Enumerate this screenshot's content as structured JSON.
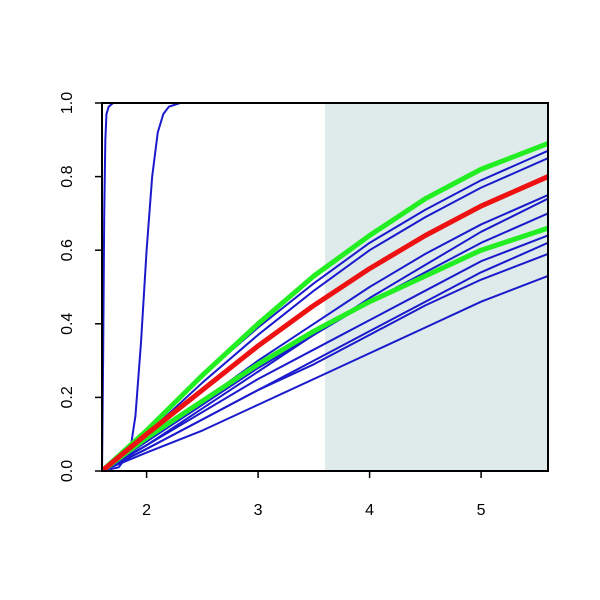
{
  "chart_data": {
    "type": "line",
    "xlim": [
      1.6,
      5.6
    ],
    "ylim": [
      0,
      1
    ],
    "xticks": [
      2,
      3,
      4,
      5
    ],
    "yticks": [
      {
        "value": 0,
        "label": "0.0"
      },
      {
        "value": 0.2,
        "label": "0.2"
      },
      {
        "value": 0.4,
        "label": "0.4"
      },
      {
        "value": 0.6,
        "label": "0.6"
      },
      {
        "value": 0.8,
        "label": "0.8"
      },
      {
        "value": 1,
        "label": "1.0"
      }
    ],
    "shaded_x": [
      3.6,
      5.6
    ],
    "shade_color": "#deebea",
    "series": [
      {
        "color": "#1a1acc",
        "linewidth": 2,
        "x": [
          1.6,
          1.61,
          1.62,
          1.63,
          1.64,
          1.66,
          1.7,
          1.8,
          5.6
        ],
        "values": [
          0,
          0.3,
          0.7,
          0.9,
          0.97,
          0.99,
          1,
          1,
          1
        ]
      },
      {
        "color": "#1a1acc",
        "linewidth": 2,
        "x": [
          1.6,
          1.75,
          1.85,
          1.9,
          1.95,
          2.0,
          2.05,
          2.1,
          2.15,
          2.2,
          2.3,
          5.6
        ],
        "values": [
          0,
          0.01,
          0.05,
          0.15,
          0.35,
          0.6,
          0.8,
          0.92,
          0.97,
          0.99,
          1,
          1
        ]
      },
      {
        "color": "#1a1acc",
        "linewidth": 2,
        "x": [
          1.6,
          2,
          2.5,
          3,
          3.5,
          4,
          4.5,
          5,
          5.6
        ],
        "values": [
          0,
          0.11,
          0.26,
          0.39,
          0.51,
          0.62,
          0.71,
          0.79,
          0.87
        ]
      },
      {
        "color": "#1a1acc",
        "linewidth": 2,
        "x": [
          1.6,
          2,
          2.5,
          3,
          3.5,
          4,
          4.5,
          5,
          5.6
        ],
        "values": [
          0,
          0.1,
          0.24,
          0.37,
          0.49,
          0.6,
          0.69,
          0.77,
          0.85
        ]
      },
      {
        "color": "#1a1acc",
        "linewidth": 2,
        "x": [
          1.6,
          2,
          2.5,
          3,
          3.5,
          4,
          4.5,
          5,
          5.6
        ],
        "values": [
          0,
          0.08,
          0.19,
          0.3,
          0.4,
          0.5,
          0.59,
          0.67,
          0.75
        ]
      },
      {
        "color": "#1a1acc",
        "linewidth": 2,
        "x": [
          1.6,
          2,
          2.5,
          3,
          3.5,
          4,
          4.5,
          5,
          5.6
        ],
        "values": [
          0,
          0.07,
          0.17,
          0.27,
          0.37,
          0.47,
          0.56,
          0.65,
          0.74
        ]
      },
      {
        "color": "#1a1acc",
        "linewidth": 2,
        "x": [
          1.6,
          2,
          2.5,
          3,
          3.5,
          4,
          4.5,
          5,
          5.6
        ],
        "values": [
          0,
          0.08,
          0.18,
          0.28,
          0.37,
          0.46,
          0.54,
          0.62,
          0.7
        ]
      },
      {
        "color": "#1a1acc",
        "linewidth": 2,
        "x": [
          1.6,
          2,
          2.5,
          3,
          3.5,
          4,
          4.5,
          5,
          5.6
        ],
        "values": [
          0,
          0.07,
          0.16,
          0.25,
          0.33,
          0.41,
          0.49,
          0.57,
          0.64
        ]
      },
      {
        "color": "#1a1acc",
        "linewidth": 2,
        "x": [
          1.6,
          2,
          2.5,
          3,
          3.5,
          4,
          4.5,
          5,
          5.6
        ],
        "values": [
          0,
          0.06,
          0.14,
          0.22,
          0.3,
          0.38,
          0.46,
          0.54,
          0.62
        ]
      },
      {
        "color": "#1a1acc",
        "linewidth": 2,
        "x": [
          1.6,
          2,
          2.5,
          3,
          3.5,
          4,
          4.5,
          5,
          5.6
        ],
        "values": [
          0,
          0.06,
          0.14,
          0.22,
          0.29,
          0.37,
          0.45,
          0.52,
          0.59
        ]
      },
      {
        "color": "#1a1acc",
        "linewidth": 2,
        "x": [
          1.6,
          2,
          2.5,
          3,
          3.5,
          4,
          4.5,
          5,
          5.6
        ],
        "values": [
          0,
          0.05,
          0.11,
          0.18,
          0.25,
          0.32,
          0.39,
          0.46,
          0.53
        ]
      },
      {
        "color": "#22ee22",
        "linewidth": 5,
        "x": [
          1.6,
          2,
          2.5,
          3,
          3.5,
          4,
          4.5,
          5,
          5.6
        ],
        "values": [
          0,
          0.11,
          0.26,
          0.4,
          0.53,
          0.64,
          0.74,
          0.82,
          0.89
        ]
      },
      {
        "color": "#22ee22",
        "linewidth": 5,
        "x": [
          1.6,
          2,
          2.5,
          3,
          3.5,
          4,
          4.5,
          5,
          5.6
        ],
        "values": [
          0,
          0.09,
          0.19,
          0.29,
          0.38,
          0.46,
          0.53,
          0.6,
          0.66
        ]
      },
      {
        "color": "#ee1111",
        "linewidth": 5,
        "x": [
          1.6,
          2,
          2.5,
          3,
          3.5,
          4,
          4.5,
          5,
          5.6
        ],
        "values": [
          0,
          0.1,
          0.22,
          0.34,
          0.45,
          0.55,
          0.64,
          0.72,
          0.8
        ]
      }
    ]
  }
}
